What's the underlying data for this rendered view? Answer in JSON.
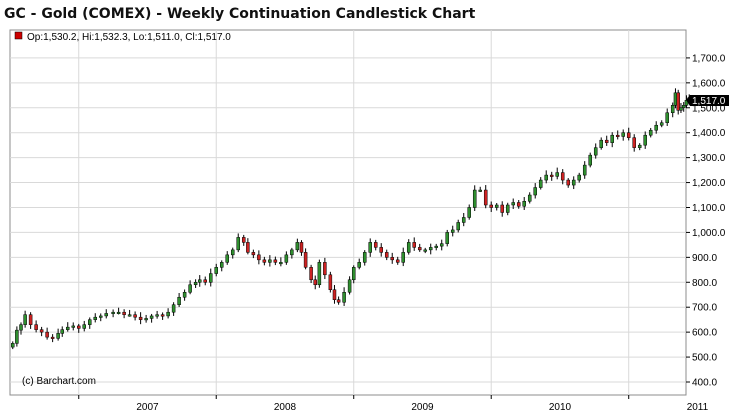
{
  "title": "GC - Gold (COMEX) - Weekly Continuation Candlestick Chart",
  "ohlc_label": "Op:1,530.2, Hi:1,532.3, Lo:1,511.0, Cl:1,517.0",
  "last_price_label": "1,517.0",
  "watermark": "(c) Barchart.com",
  "colors": {
    "up": "#2f8f2f",
    "down": "#cc2222",
    "wick": "#000000",
    "grid": "#d9d9d9",
    "price_tag_bg": "#000000",
    "legend_square": "#cc0000"
  },
  "chart_data": {
    "type": "candlestick",
    "title": "GC - Gold (COMEX) - Weekly Continuation Candlestick Chart",
    "x_tick_labels": [
      "2007",
      "2008",
      "2009",
      "2010",
      "2011"
    ],
    "y_tick_values": [
      400,
      500,
      600,
      700,
      800,
      900,
      1000,
      1100,
      1200,
      1300,
      1400,
      1500,
      1600,
      1700
    ],
    "y_tick_labels": [
      "400.0",
      "500.0",
      "600.0",
      "700.0",
      "800.0",
      "900.0",
      "1,000.0",
      "1,100.0",
      "1,200.0",
      "1,300.0",
      "1,400.0",
      "1,500.0",
      "1,600.0",
      "1,700.0"
    ],
    "ylim": [
      350,
      1750
    ],
    "xlim": [
      "2006-07",
      "2011-06"
    ],
    "grid": true,
    "last_bar": {
      "open": 1530.2,
      "high": 1532.3,
      "low": 1511.0,
      "close": 1517.0
    },
    "weekly_close": [
      [
        2006.52,
        555
      ],
      [
        2006.55,
        608
      ],
      [
        2006.58,
        630
      ],
      [
        2006.61,
        670
      ],
      [
        2006.65,
        630
      ],
      [
        2006.69,
        610
      ],
      [
        2006.73,
        600
      ],
      [
        2006.77,
        580
      ],
      [
        2006.81,
        575
      ],
      [
        2006.85,
        595
      ],
      [
        2006.88,
        610
      ],
      [
        2006.92,
        620
      ],
      [
        2006.96,
        625
      ],
      [
        2007.0,
        615
      ],
      [
        2007.04,
        630
      ],
      [
        2007.08,
        650
      ],
      [
        2007.12,
        660
      ],
      [
        2007.16,
        665
      ],
      [
        2007.2,
        675
      ],
      [
        2007.25,
        680
      ],
      [
        2007.29,
        680
      ],
      [
        2007.33,
        670
      ],
      [
        2007.37,
        670
      ],
      [
        2007.41,
        660
      ],
      [
        2007.45,
        650
      ],
      [
        2007.49,
        655
      ],
      [
        2007.53,
        665
      ],
      [
        2007.57,
        670
      ],
      [
        2007.61,
        665
      ],
      [
        2007.65,
        680
      ],
      [
        2007.69,
        710
      ],
      [
        2007.73,
        740
      ],
      [
        2007.77,
        760
      ],
      [
        2007.81,
        790
      ],
      [
        2007.85,
        800
      ],
      [
        2007.88,
        810
      ],
      [
        2007.92,
        800
      ],
      [
        2007.96,
        835
      ],
      [
        2008.0,
        860
      ],
      [
        2008.04,
        880
      ],
      [
        2008.08,
        910
      ],
      [
        2008.12,
        930
      ],
      [
        2008.16,
        980
      ],
      [
        2008.2,
        960
      ],
      [
        2008.23,
        920
      ],
      [
        2008.27,
        910
      ],
      [
        2008.31,
        890
      ],
      [
        2008.35,
        880
      ],
      [
        2008.39,
        890
      ],
      [
        2008.43,
        880
      ],
      [
        2008.47,
        880
      ],
      [
        2008.51,
        910
      ],
      [
        2008.55,
        930
      ],
      [
        2008.59,
        960
      ],
      [
        2008.62,
        920
      ],
      [
        2008.65,
        860
      ],
      [
        2008.69,
        810
      ],
      [
        2008.72,
        790
      ],
      [
        2008.75,
        880
      ],
      [
        2008.79,
        830
      ],
      [
        2008.83,
        770
      ],
      [
        2008.86,
        730
      ],
      [
        2008.89,
        720
      ],
      [
        2008.93,
        760
      ],
      [
        2008.97,
        810
      ],
      [
        2009.0,
        860
      ],
      [
        2009.04,
        880
      ],
      [
        2009.08,
        920
      ],
      [
        2009.12,
        960
      ],
      [
        2009.16,
        940
      ],
      [
        2009.2,
        920
      ],
      [
        2009.24,
        900
      ],
      [
        2009.28,
        890
      ],
      [
        2009.32,
        880
      ],
      [
        2009.36,
        920
      ],
      [
        2009.4,
        960
      ],
      [
        2009.44,
        940
      ],
      [
        2009.48,
        930
      ],
      [
        2009.52,
        930
      ],
      [
        2009.56,
        940
      ],
      [
        2009.6,
        945
      ],
      [
        2009.64,
        955
      ],
      [
        2009.68,
        1000
      ],
      [
        2009.72,
        1010
      ],
      [
        2009.76,
        1040
      ],
      [
        2009.8,
        1060
      ],
      [
        2009.84,
        1100
      ],
      [
        2009.88,
        1170
      ],
      [
        2009.92,
        1170
      ],
      [
        2009.96,
        1110
      ],
      [
        2010.0,
        1100
      ],
      [
        2010.04,
        1110
      ],
      [
        2010.08,
        1080
      ],
      [
        2010.12,
        1110
      ],
      [
        2010.16,
        1120
      ],
      [
        2010.2,
        1105
      ],
      [
        2010.24,
        1125
      ],
      [
        2010.28,
        1150
      ],
      [
        2010.32,
        1180
      ],
      [
        2010.36,
        1210
      ],
      [
        2010.4,
        1230
      ],
      [
        2010.44,
        1225
      ],
      [
        2010.48,
        1240
      ],
      [
        2010.52,
        1210
      ],
      [
        2010.56,
        1190
      ],
      [
        2010.6,
        1210
      ],
      [
        2010.64,
        1230
      ],
      [
        2010.68,
        1270
      ],
      [
        2010.72,
        1310
      ],
      [
        2010.76,
        1340
      ],
      [
        2010.8,
        1370
      ],
      [
        2010.84,
        1360
      ],
      [
        2010.88,
        1390
      ],
      [
        2010.92,
        1385
      ],
      [
        2010.96,
        1400
      ],
      [
        2011.0,
        1380
      ],
      [
        2011.04,
        1340
      ],
      [
        2011.08,
        1350
      ],
      [
        2011.12,
        1390
      ],
      [
        2011.16,
        1410
      ],
      [
        2011.2,
        1430
      ],
      [
        2011.24,
        1440
      ],
      [
        2011.28,
        1480
      ],
      [
        2011.32,
        1510
      ],
      [
        2011.34,
        1560
      ],
      [
        2011.36,
        1490
      ],
      [
        2011.38,
        1500
      ],
      [
        2011.4,
        1510
      ],
      [
        2011.42,
        1530
      ],
      [
        2011.44,
        1540
      ],
      [
        2011.46,
        1517
      ]
    ]
  }
}
